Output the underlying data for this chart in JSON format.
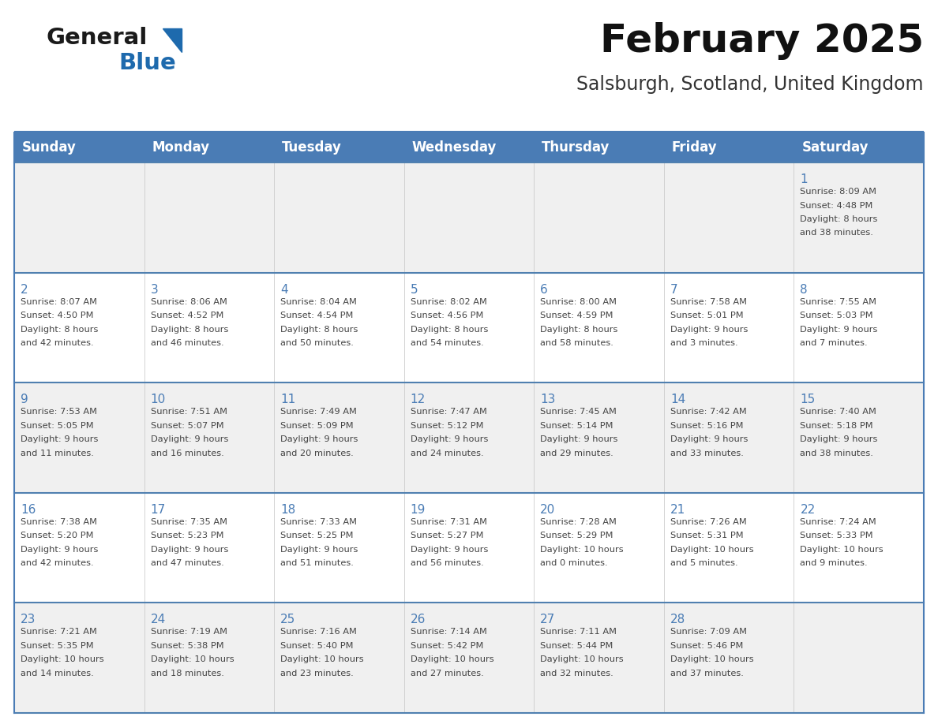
{
  "title": "February 2025",
  "subtitle": "Salsburgh, Scotland, United Kingdom",
  "days_of_week": [
    "Sunday",
    "Monday",
    "Tuesday",
    "Wednesday",
    "Thursday",
    "Friday",
    "Saturday"
  ],
  "header_bg": "#4a7cb5",
  "header_text": "#ffffff",
  "row_bg_odd": "#f0f0f0",
  "row_bg_even": "#ffffff",
  "border_color": "#4a7cb5",
  "row_border_color": "#5080b0",
  "day_num_color": "#4a7cb5",
  "text_color": "#444444",
  "calendar": [
    [
      null,
      null,
      null,
      null,
      null,
      null,
      {
        "day": 1,
        "sunrise": "8:09 AM",
        "sunset": "4:48 PM",
        "daylight": "8 hours and 38 minutes."
      }
    ],
    [
      {
        "day": 2,
        "sunrise": "8:07 AM",
        "sunset": "4:50 PM",
        "daylight": "8 hours and 42 minutes."
      },
      {
        "day": 3,
        "sunrise": "8:06 AM",
        "sunset": "4:52 PM",
        "daylight": "8 hours and 46 minutes."
      },
      {
        "day": 4,
        "sunrise": "8:04 AM",
        "sunset": "4:54 PM",
        "daylight": "8 hours and 50 minutes."
      },
      {
        "day": 5,
        "sunrise": "8:02 AM",
        "sunset": "4:56 PM",
        "daylight": "8 hours and 54 minutes."
      },
      {
        "day": 6,
        "sunrise": "8:00 AM",
        "sunset": "4:59 PM",
        "daylight": "8 hours and 58 minutes."
      },
      {
        "day": 7,
        "sunrise": "7:58 AM",
        "sunset": "5:01 PM",
        "daylight": "9 hours and 3 minutes."
      },
      {
        "day": 8,
        "sunrise": "7:55 AM",
        "sunset": "5:03 PM",
        "daylight": "9 hours and 7 minutes."
      }
    ],
    [
      {
        "day": 9,
        "sunrise": "7:53 AM",
        "sunset": "5:05 PM",
        "daylight": "9 hours and 11 minutes."
      },
      {
        "day": 10,
        "sunrise": "7:51 AM",
        "sunset": "5:07 PM",
        "daylight": "9 hours and 16 minutes."
      },
      {
        "day": 11,
        "sunrise": "7:49 AM",
        "sunset": "5:09 PM",
        "daylight": "9 hours and 20 minutes."
      },
      {
        "day": 12,
        "sunrise": "7:47 AM",
        "sunset": "5:12 PM",
        "daylight": "9 hours and 24 minutes."
      },
      {
        "day": 13,
        "sunrise": "7:45 AM",
        "sunset": "5:14 PM",
        "daylight": "9 hours and 29 minutes."
      },
      {
        "day": 14,
        "sunrise": "7:42 AM",
        "sunset": "5:16 PM",
        "daylight": "9 hours and 33 minutes."
      },
      {
        "day": 15,
        "sunrise": "7:40 AM",
        "sunset": "5:18 PM",
        "daylight": "9 hours and 38 minutes."
      }
    ],
    [
      {
        "day": 16,
        "sunrise": "7:38 AM",
        "sunset": "5:20 PM",
        "daylight": "9 hours and 42 minutes."
      },
      {
        "day": 17,
        "sunrise": "7:35 AM",
        "sunset": "5:23 PM",
        "daylight": "9 hours and 47 minutes."
      },
      {
        "day": 18,
        "sunrise": "7:33 AM",
        "sunset": "5:25 PM",
        "daylight": "9 hours and 51 minutes."
      },
      {
        "day": 19,
        "sunrise": "7:31 AM",
        "sunset": "5:27 PM",
        "daylight": "9 hours and 56 minutes."
      },
      {
        "day": 20,
        "sunrise": "7:28 AM",
        "sunset": "5:29 PM",
        "daylight": "10 hours and 0 minutes."
      },
      {
        "day": 21,
        "sunrise": "7:26 AM",
        "sunset": "5:31 PM",
        "daylight": "10 hours and 5 minutes."
      },
      {
        "day": 22,
        "sunrise": "7:24 AM",
        "sunset": "5:33 PM",
        "daylight": "10 hours and 9 minutes."
      }
    ],
    [
      {
        "day": 23,
        "sunrise": "7:21 AM",
        "sunset": "5:35 PM",
        "daylight": "10 hours and 14 minutes."
      },
      {
        "day": 24,
        "sunrise": "7:19 AM",
        "sunset": "5:38 PM",
        "daylight": "10 hours and 18 minutes."
      },
      {
        "day": 25,
        "sunrise": "7:16 AM",
        "sunset": "5:40 PM",
        "daylight": "10 hours and 23 minutes."
      },
      {
        "day": 26,
        "sunrise": "7:14 AM",
        "sunset": "5:42 PM",
        "daylight": "10 hours and 27 minutes."
      },
      {
        "day": 27,
        "sunrise": "7:11 AM",
        "sunset": "5:44 PM",
        "daylight": "10 hours and 32 minutes."
      },
      {
        "day": 28,
        "sunrise": "7:09 AM",
        "sunset": "5:46 PM",
        "daylight": "10 hours and 37 minutes."
      },
      null
    ]
  ],
  "logo_text1": "General",
  "logo_text2": "Blue",
  "logo_triangle_color": "#1e6aad",
  "logo_text1_color": "#1a1a1a",
  "title_fontsize": 36,
  "subtitle_fontsize": 17,
  "header_fontsize": 12,
  "day_num_fontsize": 11,
  "cell_text_fontsize": 8.2
}
